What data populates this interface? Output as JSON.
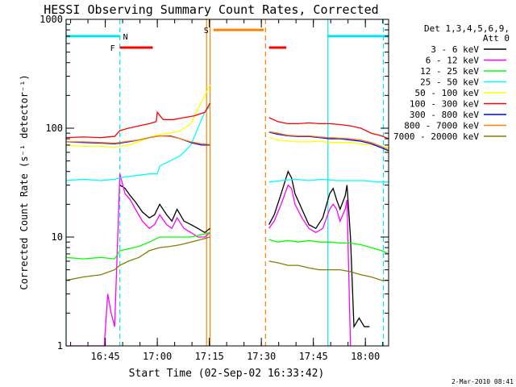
{
  "chart_data": {
    "type": "line",
    "title": "HESSI Observing Summary Count Rates, Corrected",
    "xlabel": "Start Time (02-Sep-02 16:33:42)",
    "ylabel": "Corrected Count Rate (s⁻¹ detector⁻¹)",
    "y_scale": "log",
    "ylim": [
      1,
      1000
    ],
    "xlim_min_after_start": [
      0,
      93
    ],
    "x_unit": "minutes after 16:33:42",
    "x_ticks": [
      {
        "label": "16:45",
        "value": 11.3
      },
      {
        "label": "17:00",
        "value": 26.3
      },
      {
        "label": "17:15",
        "value": 41.3
      },
      {
        "label": "17:30",
        "value": 56.3
      },
      {
        "label": "17:45",
        "value": 71.3
      },
      {
        "label": "18:00",
        "value": 86.3
      }
    ],
    "y_ticks": [
      {
        "label": "1",
        "value": 1
      },
      {
        "label": "10",
        "value": 10
      },
      {
        "label": "100",
        "value": 100
      },
      {
        "label": "1000",
        "value": 1000
      }
    ],
    "legend": {
      "title_lines": [
        "Det 1,3,4,5,6,9,",
        "Att 0"
      ],
      "placement": "right, outside plot"
    },
    "gaps": [
      [
        41.5,
        58
      ]
    ],
    "series": [
      {
        "name": "3 - 6 keV",
        "color": "#000000",
        "x": [
          15.5,
          17,
          18.5,
          20,
          22,
          24,
          25.5,
          27,
          29,
          30.5,
          32,
          34,
          36,
          38,
          40,
          41.5,
          58.5,
          60,
          62,
          64,
          65,
          66,
          68,
          70,
          72,
          74,
          76,
          77,
          78,
          79,
          80.5,
          81,
          82,
          83,
          84.5,
          86,
          87.5
        ],
        "y": [
          30,
          28,
          24,
          21,
          17,
          15,
          16,
          20,
          16,
          14,
          18,
          14,
          13,
          12,
          11,
          12,
          13,
          16,
          25,
          40,
          35,
          25,
          18,
          13,
          12,
          15,
          25,
          28,
          22,
          18,
          24,
          30,
          10,
          1.5,
          1.8,
          1.5,
          1.5
        ]
      },
      {
        "name": "6 - 12 keV",
        "color": "#ff00ff",
        "x": [
          0,
          11,
          12,
          13,
          14,
          15.5,
          17,
          18.5,
          20,
          22,
          24,
          25.5,
          27,
          29,
          30.5,
          32,
          34,
          36,
          38,
          40,
          41.5,
          58.5,
          60,
          62,
          64,
          65,
          66,
          68,
          70,
          72,
          74,
          76,
          77,
          78,
          79,
          80.5,
          81,
          82
        ],
        "y": [
          1,
          1,
          3,
          2,
          1.5,
          38,
          25,
          22,
          18,
          14,
          12,
          13,
          16,
          13,
          12,
          15,
          12,
          11,
          10,
          10,
          11,
          12,
          14,
          20,
          30,
          28,
          20,
          15,
          12,
          11,
          12,
          18,
          20,
          18,
          14,
          18,
          22,
          1
        ]
      },
      {
        "name": "12 - 25 keV",
        "color": "#00ff00",
        "x": [
          0,
          5,
          10,
          14,
          15.5,
          18,
          21,
          24,
          27,
          30,
          33,
          36,
          39,
          41.5,
          58.5,
          61,
          64,
          67,
          70,
          73,
          76,
          79,
          82,
          85,
          88,
          91,
          93
        ],
        "y": [
          6.5,
          6.3,
          6.5,
          6.3,
          7.5,
          7.8,
          8.2,
          9,
          10,
          10,
          10,
          10,
          10.5,
          11,
          9.5,
          9,
          9.3,
          9,
          9.3,
          9,
          9,
          8.8,
          8.8,
          8.5,
          8,
          7.5,
          7
        ]
      },
      {
        "name": "25 - 50 keV",
        "color": "#00ffff",
        "x": [
          0,
          5,
          10,
          14,
          15.5,
          18,
          21,
          24,
          26.3,
          27,
          30,
          33,
          36,
          38,
          40,
          41.5,
          58.5,
          62,
          66,
          70,
          74,
          78,
          82,
          86,
          90,
          93
        ],
        "y": [
          33,
          34,
          33,
          34,
          35,
          36,
          37,
          38,
          38,
          45,
          50,
          56,
          70,
          100,
          140,
          160,
          32,
          33,
          34,
          33,
          34,
          33,
          33,
          33,
          32,
          32
        ]
      },
      {
        "name": "50 - 100 keV",
        "color": "#ffff00",
        "x": [
          0,
          5,
          10,
          14,
          15.5,
          18,
          21,
          24,
          27,
          30,
          33,
          36,
          38,
          40,
          41.5,
          58.5,
          61,
          64,
          67,
          70,
          73,
          76,
          79,
          82,
          85,
          88,
          91,
          93
        ],
        "y": [
          70,
          68,
          68,
          67,
          68,
          70,
          75,
          82,
          88,
          90,
          95,
          110,
          150,
          200,
          250,
          82,
          78,
          76,
          75,
          75,
          76,
          74,
          74,
          74,
          72,
          70,
          68,
          66
        ]
      },
      {
        "name": "100 - 300 keV",
        "color": "#ff0000",
        "x": [
          0,
          5,
          10,
          14,
          15.5,
          18,
          21,
          24,
          26,
          26.3,
          28,
          31,
          34,
          37,
          40,
          41.5,
          58.5,
          61,
          64,
          67,
          70,
          73,
          76,
          79,
          82,
          85,
          88,
          91,
          93
        ],
        "y": [
          82,
          83,
          82,
          84,
          95,
          100,
          105,
          110,
          115,
          140,
          120,
          120,
          125,
          130,
          140,
          170,
          125,
          115,
          110,
          110,
          112,
          110,
          110,
          108,
          105,
          100,
          90,
          85,
          80
        ]
      },
      {
        "name": "300 - 800 keV",
        "color": "#0000ff",
        "x": [
          0,
          5,
          10,
          14,
          15.5,
          18,
          21,
          24,
          27,
          30,
          33,
          36,
          39,
          41.5,
          58.5,
          61,
          64,
          67,
          70,
          73,
          76,
          79,
          82,
          85,
          88,
          91,
          93
        ],
        "y": [
          75,
          74,
          73,
          72,
          73,
          75,
          78,
          82,
          85,
          85,
          80,
          74,
          70,
          70,
          92,
          88,
          85,
          84,
          84,
          82,
          80,
          80,
          78,
          76,
          72,
          66,
          62
        ]
      },
      {
        "name": "800 - 7000 keV",
        "color": "#ff8000",
        "x": [
          0,
          5,
          10,
          14,
          15.5,
          18,
          21,
          24,
          27,
          30,
          33,
          36,
          39,
          41.5,
          58.5,
          61,
          64,
          67,
          70,
          73,
          76,
          79,
          82,
          85,
          88,
          91,
          93
        ],
        "y": [
          75,
          75,
          74,
          73,
          74,
          76,
          78,
          82,
          85,
          84,
          80,
          75,
          72,
          71,
          93,
          90,
          86,
          85,
          85,
          83,
          82,
          81,
          80,
          78,
          74,
          68,
          63
        ]
      },
      {
        "name": "7000 - 20000 keV",
        "color": "#808000",
        "x": [
          0,
          5,
          10,
          14,
          15.5,
          18,
          21,
          24,
          27,
          30,
          33,
          36,
          39,
          41.5,
          58.5,
          61,
          64,
          67,
          70,
          73,
          76,
          79,
          82,
          85,
          88,
          91,
          93
        ],
        "y": [
          4,
          4.3,
          4.5,
          5,
          5.5,
          6,
          6.5,
          7.5,
          8,
          8.2,
          8.5,
          9,
          9.5,
          10,
          6,
          5.8,
          5.5,
          5.5,
          5.2,
          5,
          5,
          5,
          4.8,
          4.5,
          4.3,
          4,
          4
        ]
      }
    ],
    "flag_lines": [
      {
        "label": "",
        "color": "#00e5ee",
        "style": "solid",
        "level": 700,
        "segments": [
          [
            0,
            15.5
          ],
          [
            75.5,
            93
          ]
        ]
      },
      {
        "label": "F",
        "color": "#ff0000",
        "style": "solid",
        "level": 550,
        "segments": [
          [
            15.5,
            25
          ]
        ]
      },
      {
        "label": "",
        "color": "#ff0000",
        "style": "solid",
        "level": 550,
        "segments": [
          [
            58.5,
            63.5
          ]
        ]
      },
      {
        "label": "S",
        "color": "#ff8000",
        "style": "solid",
        "level": 800,
        "segments": [
          [
            42.5,
            57
          ]
        ]
      }
    ],
    "vertical_markers": [
      {
        "label": "",
        "color": "#00e5ee",
        "style": "solid",
        "x": 0
      },
      {
        "label": "N",
        "color": "#00e5ee",
        "style": "dashed",
        "x": 15.5
      },
      {
        "label": "",
        "color": "#00e5ee",
        "style": "solid",
        "x": 75.5
      },
      {
        "label": "",
        "color": "#00e5ee",
        "style": "dashed",
        "x": 91.5
      },
      {
        "label": "",
        "color": "#ff8000",
        "style": "solid",
        "x": 40.5
      },
      {
        "label": "",
        "color": "#ff8000",
        "style": "solid",
        "x": 41.5
      },
      {
        "label": "",
        "color": "#ff8000",
        "style": "dashed",
        "x": 57.5
      }
    ]
  },
  "footer": {
    "date_stamp": "2-Mar-2010 08:41"
  }
}
